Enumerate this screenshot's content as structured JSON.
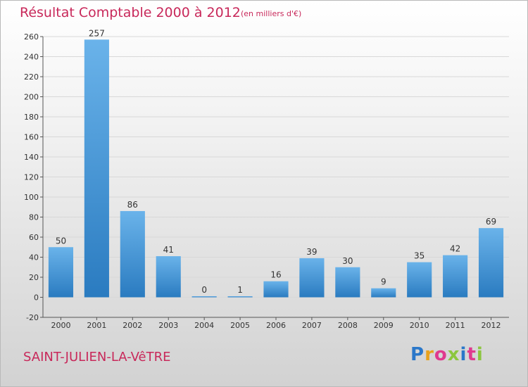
{
  "title": "Résultat Comptable 2000 à 2012",
  "subtitle": "(en milliers d'€)",
  "place": "SAINT-JULIEN-LA-VêTRE",
  "logo": {
    "text": "Proxiti",
    "colors": [
      "#2a77c9",
      "#e8a21c",
      "#e03a8e",
      "#8cc63f",
      "#2a77c9",
      "#e03a8e",
      "#8cc63f"
    ]
  },
  "colors": {
    "title": "#c8285a",
    "bar_top": "#6ab3ea",
    "bar_bottom": "#2a7bc0",
    "grid": "#d8d8d8"
  },
  "chart_data": {
    "type": "bar",
    "title": "Résultat Comptable 2000 à 2012",
    "xlabel": "",
    "ylabel": "",
    "ylim": [
      -20,
      260
    ],
    "yticks": [
      -20,
      0,
      20,
      40,
      60,
      80,
      100,
      120,
      140,
      160,
      180,
      200,
      220,
      240,
      260
    ],
    "grid": true,
    "categories": [
      "2000",
      "2001",
      "2002",
      "2003",
      "2004",
      "2005",
      "2006",
      "2007",
      "2008",
      "2009",
      "2010",
      "2011",
      "2012"
    ],
    "values": [
      50,
      257,
      86,
      41,
      0,
      1,
      16,
      39,
      30,
      9,
      35,
      42,
      69
    ]
  }
}
